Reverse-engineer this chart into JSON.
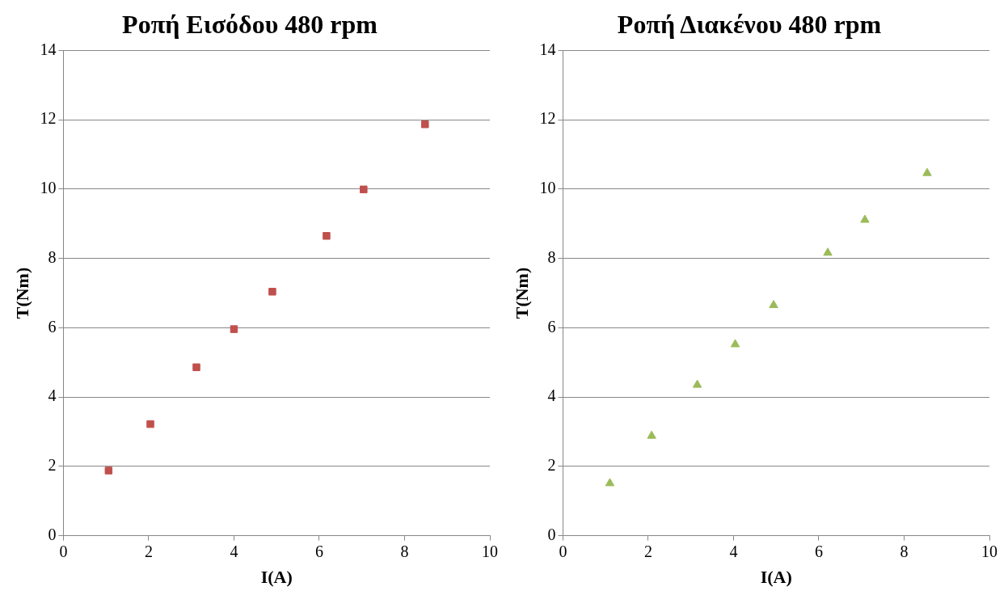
{
  "chart_data": [
    {
      "type": "scatter",
      "title": "Ροπή Εισόδου 480 rpm",
      "xlabel": "I(A)",
      "ylabel": "T(Nm)",
      "x": [
        1.06,
        2.04,
        3.12,
        4.0,
        4.9,
        6.17,
        7.04,
        8.48
      ],
      "series": [
        {
          "color": "#c0504d",
          "values": [
            1.88,
            3.22,
            4.86,
            5.96,
            7.04,
            8.65,
            9.99,
            11.87
          ]
        }
      ],
      "xlim": [
        0,
        10
      ],
      "ylim": [
        0,
        14
      ],
      "xticks": [
        0,
        2,
        4,
        6,
        8,
        10
      ],
      "yticks": [
        0,
        2,
        4,
        6,
        8,
        10,
        12,
        14
      ],
      "grid": "y",
      "marker": "square",
      "legend": false
    },
    {
      "type": "scatter",
      "title": "Ροπή Διακένου 480 rpm",
      "xlabel": "I(A)",
      "ylabel": "T(Nm)",
      "x": [
        1.1,
        2.08,
        3.15,
        4.04,
        4.94,
        6.21,
        7.08,
        8.54
      ],
      "series": [
        {
          "color": "#9bbb59",
          "values": [
            1.51,
            2.88,
            4.35,
            5.52,
            6.65,
            8.16,
            9.11,
            10.46
          ]
        }
      ],
      "xlim": [
        0,
        10
      ],
      "ylim": [
        0,
        14
      ],
      "xticks": [
        0,
        2,
        4,
        6,
        8,
        10
      ],
      "yticks": [
        0,
        2,
        4,
        6,
        8,
        10,
        12,
        14
      ],
      "grid": "y",
      "marker": "triangle",
      "legend": false
    }
  ]
}
